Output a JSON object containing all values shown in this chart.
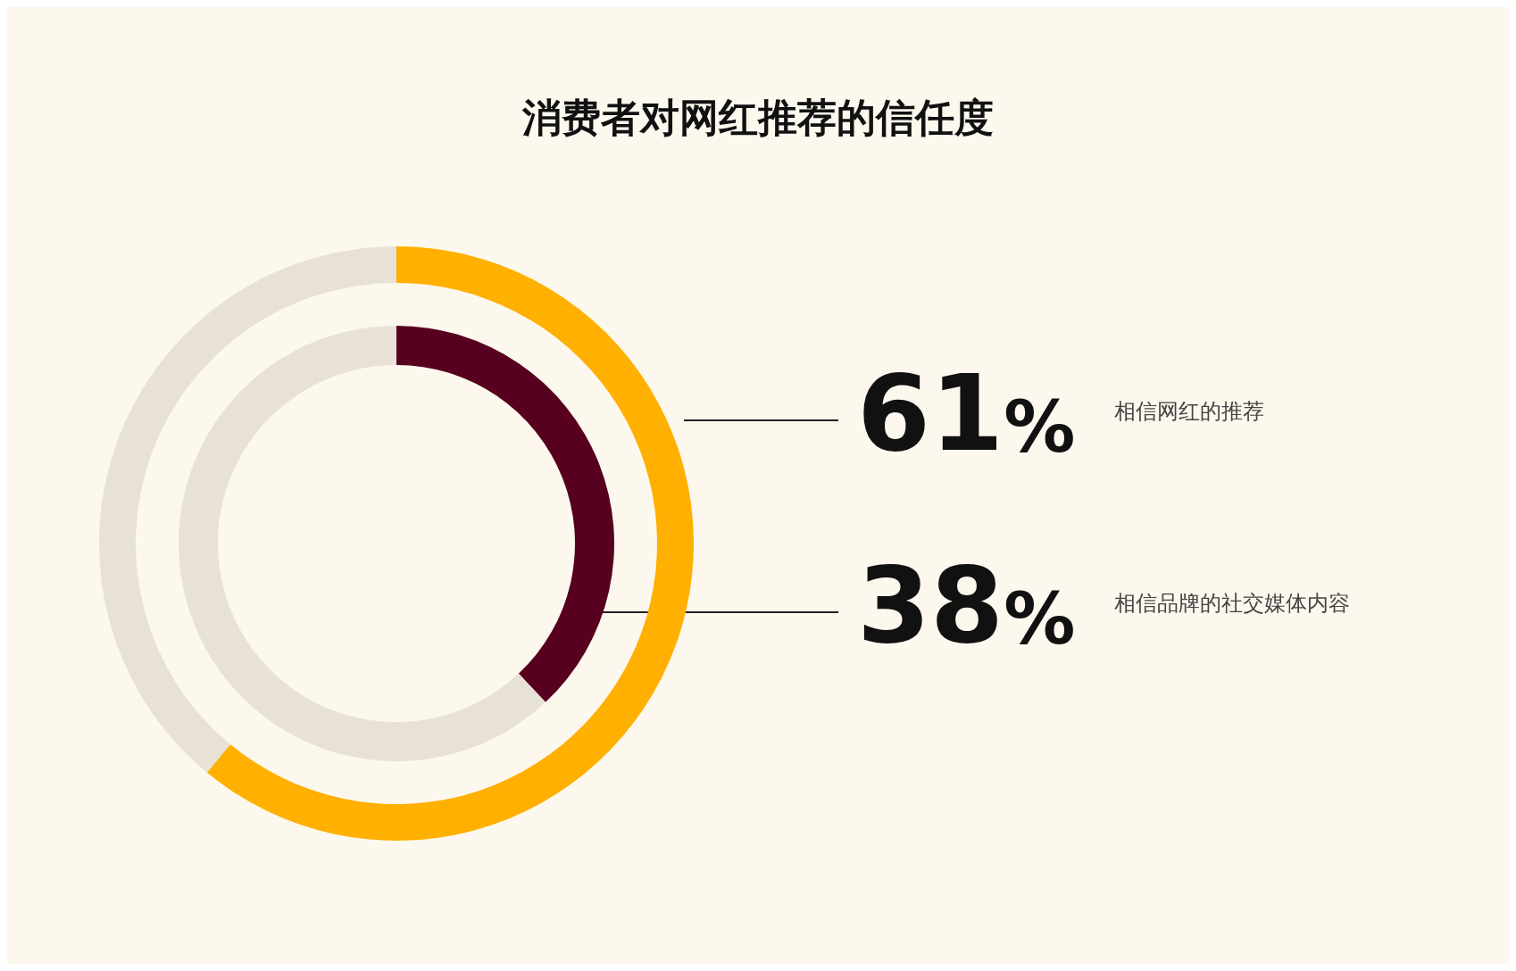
{
  "chart_data": {
    "type": "donut",
    "title": "消费者对网红推荐的信任度",
    "series": [
      {
        "name": "相信网红的推荐",
        "values": [
          61,
          39
        ],
        "colors": [
          "#ffb000",
          "#e8e1d6"
        ],
        "value_labels": [
          "61%",
          null
        ]
      },
      {
        "name": "相信品牌的社交媒体内容",
        "values": [
          38,
          62
        ],
        "colors": [
          "#57001f",
          "#e8e1d6"
        ],
        "value_labels": [
          "38%",
          null
        ]
      }
    ]
  }
}
